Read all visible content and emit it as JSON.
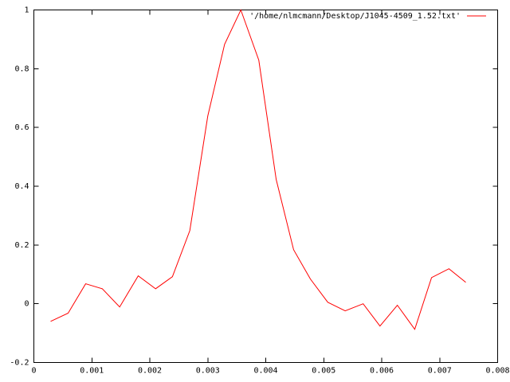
{
  "chart_data": {
    "type": "line",
    "series": [
      {
        "name": "'/home/nlmcmann/Desktop/J1045-4509_1.52.txt'",
        "color": "#ff0000",
        "x": [
          0.000289,
          0.000591,
          0.000893,
          0.00118,
          0.00148,
          0.0018,
          0.0021,
          0.00239,
          0.00269,
          0.003,
          0.00329,
          0.00357,
          0.00388,
          0.00418,
          0.00448,
          0.00477,
          0.00507,
          0.00537,
          0.00568,
          0.00597,
          0.00627,
          0.00657,
          0.00686,
          0.00716,
          0.00745
        ],
        "values": [
          -0.06,
          -0.032,
          0.068,
          0.051,
          -0.011,
          0.095,
          0.051,
          0.092,
          0.249,
          0.639,
          0.883,
          1.0,
          0.829,
          0.423,
          0.184,
          0.084,
          0.005,
          -0.024,
          0.0,
          -0.076,
          -0.005,
          -0.087,
          0.089,
          0.119,
          0.073
        ]
      }
    ],
    "xlim": [
      0,
      0.008
    ],
    "xticks": [
      0,
      0.001,
      0.002,
      0.003,
      0.004,
      0.005,
      0.006,
      0.007,
      0.008
    ],
    "ylim": [
      -0.2,
      1
    ],
    "yticks": [
      -0.2,
      0,
      0.2,
      0.4,
      0.6,
      0.8,
      1
    ],
    "legend": "top-right",
    "grid": false
  }
}
